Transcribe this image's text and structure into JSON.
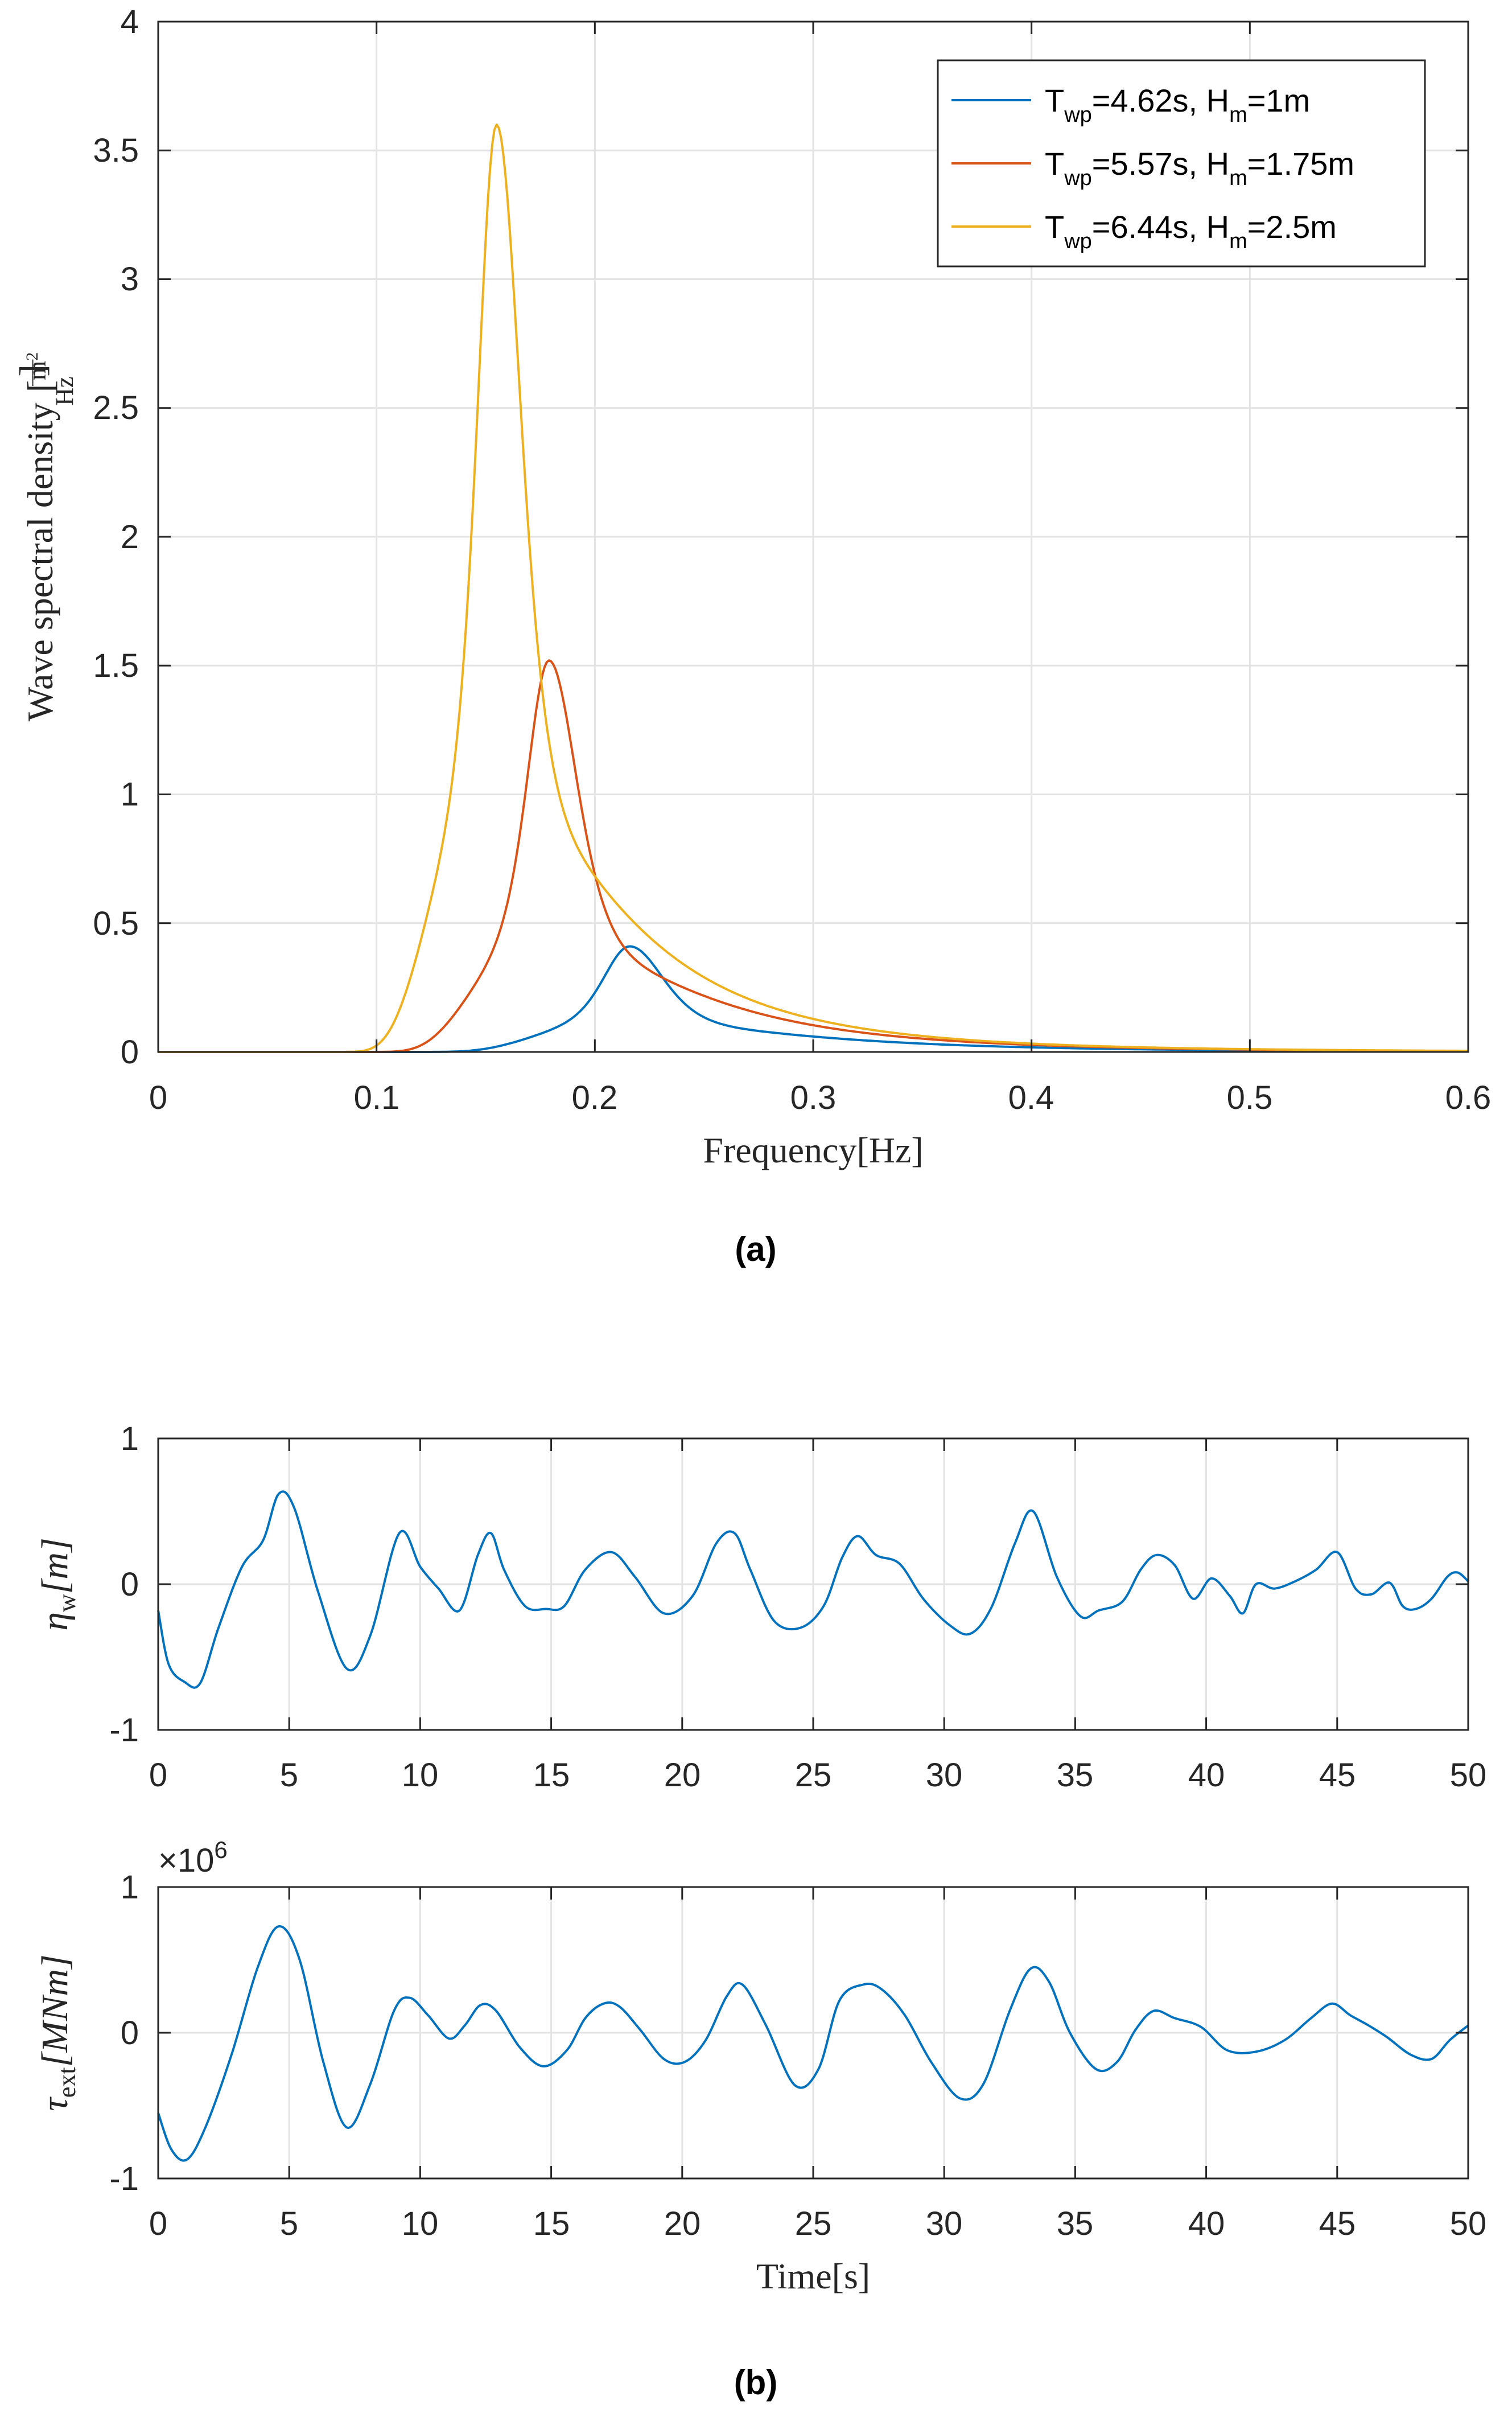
{
  "chart_data": [
    {
      "id": "spectrum",
      "type": "line",
      "xlabel": "Frequency[Hz]",
      "ylabel_main": "Wave spectral density",
      "ylabel_unit_num": "m",
      "ylabel_unit_exp": "2",
      "ylabel_unit_den": "Hz",
      "xlim": [
        0,
        0.6
      ],
      "ylim": [
        0,
        4
      ],
      "xticks": [
        0,
        0.1,
        0.2,
        0.3,
        0.4,
        0.5,
        0.6
      ],
      "xtick_labels": [
        "0",
        "0.1",
        "0.2",
        "0.3",
        "0.4",
        "0.5",
        "0.6"
      ],
      "yticks": [
        0,
        0.5,
        1,
        1.5,
        2,
        2.5,
        3,
        3.5,
        4
      ],
      "ytick_labels": [
        "0",
        "0.5",
        "1",
        "1.5",
        "2",
        "2.5",
        "3",
        "3.5",
        "4"
      ],
      "grid": true,
      "legend_position": "top-right",
      "caption": "(a)",
      "series": [
        {
          "name": "Twp=4.62s, Hm=1m",
          "legend_t": "T",
          "legend_t_sub": "wp",
          "legend_t_val": "=4.62s, H",
          "legend_h_sub": "m",
          "legend_h_val": "=1m",
          "color": "#0072BD",
          "peak_f": 0.216,
          "peak_s": 0.41
        },
        {
          "name": "Twp=5.57s, Hm=1.75m",
          "legend_t": "T",
          "legend_t_sub": "wp",
          "legend_t_val": "=5.57s, H",
          "legend_h_sub": "m",
          "legend_h_val": "=1.75m",
          "color": "#D95319",
          "peak_f": 0.179,
          "peak_s": 1.52
        },
        {
          "name": "Twp=6.44s, Hm=2.5m",
          "legend_t": "T",
          "legend_t_sub": "wp",
          "legend_t_val": "=6.44s, H",
          "legend_h_sub": "m",
          "legend_h_val": "=2.5m",
          "color": "#EDB120",
          "peak_f": 0.155,
          "peak_s": 3.6
        }
      ]
    },
    {
      "id": "eta",
      "type": "line",
      "ylabel_sym": "η",
      "ylabel_sub": "w",
      "ylabel_unit": "[m]",
      "xlim": [
        0,
        50
      ],
      "ylim": [
        -1,
        1
      ],
      "xticks": [
        0,
        5,
        10,
        15,
        20,
        25,
        30,
        35,
        40,
        45,
        50
      ],
      "xtick_labels": [
        "0",
        "5",
        "10",
        "15",
        "20",
        "25",
        "30",
        "35",
        "40",
        "45",
        "50"
      ],
      "yticks": [
        -1,
        0,
        1
      ],
      "ytick_labels": [
        "-1",
        "0",
        "1"
      ],
      "grid": true,
      "color": "#0072BD",
      "x": [
        0,
        0.4,
        1.0,
        1.6,
        2.3,
        3.2,
        4.0,
        4.6,
        5.2,
        6.1,
        7.2,
        8.1,
        9.2,
        10.0,
        10.7,
        11.5,
        12.2,
        12.7,
        13.2,
        14.0,
        14.8,
        15.5,
        16.3,
        17.3,
        18.2,
        19.3,
        20.4,
        21.3,
        22.0,
        22.6,
        23.5,
        24.5,
        25.4,
        26.1,
        26.7,
        27.4,
        28.3,
        29.2,
        30.2,
        31.0,
        31.8,
        32.7,
        33.4,
        34.3,
        35.2,
        35.9,
        36.8,
        37.5,
        38.1,
        38.8,
        39.5,
        40.2,
        40.9,
        41.4,
        41.9,
        42.6,
        43.4,
        44.2,
        45.0,
        45.7,
        46.3,
        47.0,
        47.5,
        48.0,
        48.6,
        49.2,
        49.6,
        50.0
      ],
      "y": [
        -0.18,
        -0.55,
        -0.67,
        -0.68,
        -0.3,
        0.12,
        0.3,
        0.62,
        0.52,
        -0.05,
        -0.58,
        -0.35,
        0.35,
        0.12,
        -0.03,
        -0.18,
        0.2,
        0.35,
        0.1,
        -0.15,
        -0.17,
        -0.15,
        0.1,
        0.22,
        0.05,
        -0.2,
        -0.08,
        0.28,
        0.35,
        0.1,
        -0.25,
        -0.3,
        -0.15,
        0.18,
        0.33,
        0.2,
        0.14,
        -0.1,
        -0.28,
        -0.34,
        -0.16,
        0.28,
        0.5,
        0.05,
        -0.22,
        -0.18,
        -0.12,
        0.1,
        0.2,
        0.13,
        -0.1,
        0.04,
        -0.08,
        -0.2,
        0.0,
        -0.03,
        0.02,
        0.1,
        0.22,
        -0.03,
        -0.07,
        0.01,
        -0.15,
        -0.17,
        -0.1,
        0.05,
        0.08,
        0.02
      ]
    },
    {
      "id": "tau",
      "type": "line",
      "ylabel_sym": "τ",
      "ylabel_sub": "ext",
      "ylabel_unit": "[MNm]",
      "xlabel": "Time[s]",
      "multiplier_base": "×10",
      "multiplier_exp": "6",
      "xlim": [
        0,
        50
      ],
      "ylim": [
        -1,
        1
      ],
      "xticks": [
        0,
        5,
        10,
        15,
        20,
        25,
        30,
        35,
        40,
        45,
        50
      ],
      "xtick_labels": [
        "0",
        "5",
        "10",
        "15",
        "20",
        "25",
        "30",
        "35",
        "40",
        "45",
        "50"
      ],
      "yticks": [
        -1,
        0,
        1
      ],
      "ytick_labels": [
        "-1",
        "0",
        "1"
      ],
      "grid": true,
      "color": "#0072BD",
      "caption": "(b)",
      "x": [
        0,
        0.5,
        1.1,
        1.8,
        2.8,
        3.8,
        4.6,
        5.4,
        6.3,
        7.2,
        8.1,
        9.0,
        9.6,
        10.3,
        11.1,
        11.7,
        12.3,
        12.9,
        13.8,
        14.7,
        15.6,
        16.3,
        17.0,
        17.6,
        18.4,
        19.3,
        20.1,
        20.9,
        21.7,
        22.3,
        23.2,
        24.3,
        25.2,
        26.0,
        26.9,
        27.6,
        28.5,
        29.5,
        30.6,
        31.5,
        32.5,
        33.3,
        34.0,
        34.8,
        35.8,
        36.6,
        37.3,
        38.0,
        38.8,
        39.8,
        40.8,
        41.9,
        43.0,
        44.0,
        44.8,
        45.5,
        46.2,
        46.9,
        47.8,
        48.6,
        49.3,
        50.0
      ],
      "y": [
        -0.55,
        -0.8,
        -0.87,
        -0.65,
        -0.15,
        0.45,
        0.73,
        0.5,
        -0.2,
        -0.65,
        -0.35,
        0.15,
        0.24,
        0.12,
        -0.04,
        0.05,
        0.19,
        0.15,
        -0.1,
        -0.23,
        -0.12,
        0.1,
        0.2,
        0.18,
        0.02,
        -0.18,
        -0.2,
        -0.05,
        0.25,
        0.33,
        0.05,
        -0.36,
        -0.25,
        0.22,
        0.33,
        0.3,
        0.12,
        -0.2,
        -0.45,
        -0.35,
        0.15,
        0.44,
        0.35,
        0.0,
        -0.25,
        -0.2,
        0.02,
        0.15,
        0.1,
        0.04,
        -0.12,
        -0.13,
        -0.05,
        0.1,
        0.2,
        0.12,
        0.05,
        -0.03,
        -0.15,
        -0.18,
        -0.05,
        0.05
      ]
    }
  ]
}
